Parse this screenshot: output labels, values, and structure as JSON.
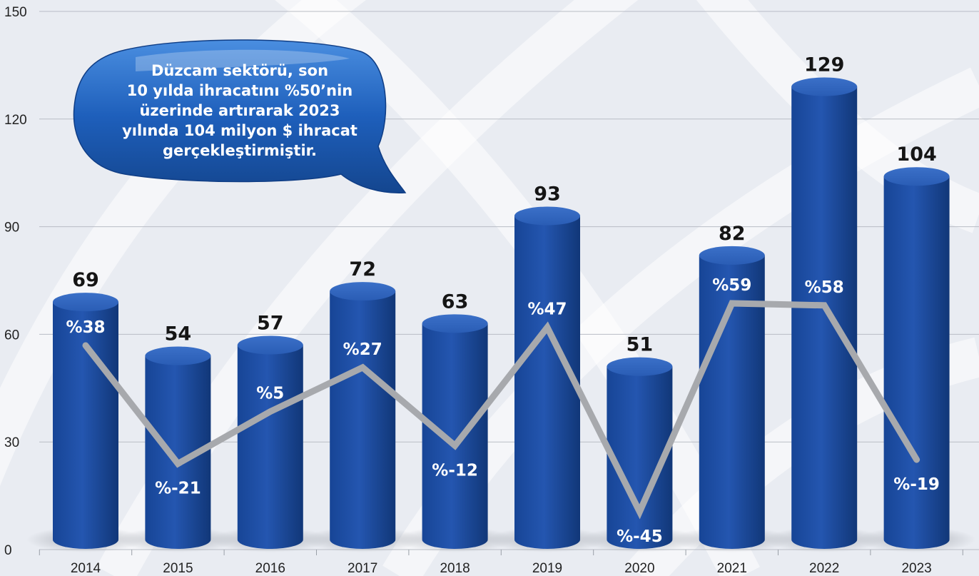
{
  "callout": {
    "lines": [
      "Düzcam sektörü, son",
      "10 yılda ihracatını %50’nin",
      "üzerinde artırarak 2023",
      "yılında 104 milyon $ ihracat",
      "gerçekleştirmiştir."
    ]
  },
  "colors": {
    "bar": "#1f4fa6",
    "bar_dark": "#123a82",
    "bar_light": "#3a6fc7",
    "line": "#a7a9ad",
    "background": "#e9ecf2",
    "callout": "#1d5cb8"
  },
  "chart_data": {
    "type": "bar",
    "categories": [
      "2014",
      "2015",
      "2016",
      "2017",
      "2018",
      "2019",
      "2020",
      "2021",
      "2022",
      "2023"
    ],
    "values": [
      69,
      54,
      57,
      72,
      63,
      93,
      51,
      82,
      129,
      104
    ],
    "value_labels": [
      "69",
      "54",
      "57",
      "72",
      "63",
      "93",
      "51",
      "82",
      "129",
      "104"
    ],
    "y_ticks": [
      0,
      30,
      60,
      90,
      120,
      150
    ],
    "ylim": [
      0,
      150
    ],
    "grid": true,
    "growth_line": {
      "type": "line",
      "labels": [
        "%38",
        "%-21",
        "%5",
        "%27",
        "%-12",
        "%47",
        "%-45",
        "%59",
        "%58",
        "%-19"
      ],
      "values": [
        38,
        -21,
        5,
        27,
        -12,
        47,
        -45,
        59,
        58,
        -19
      ]
    }
  }
}
